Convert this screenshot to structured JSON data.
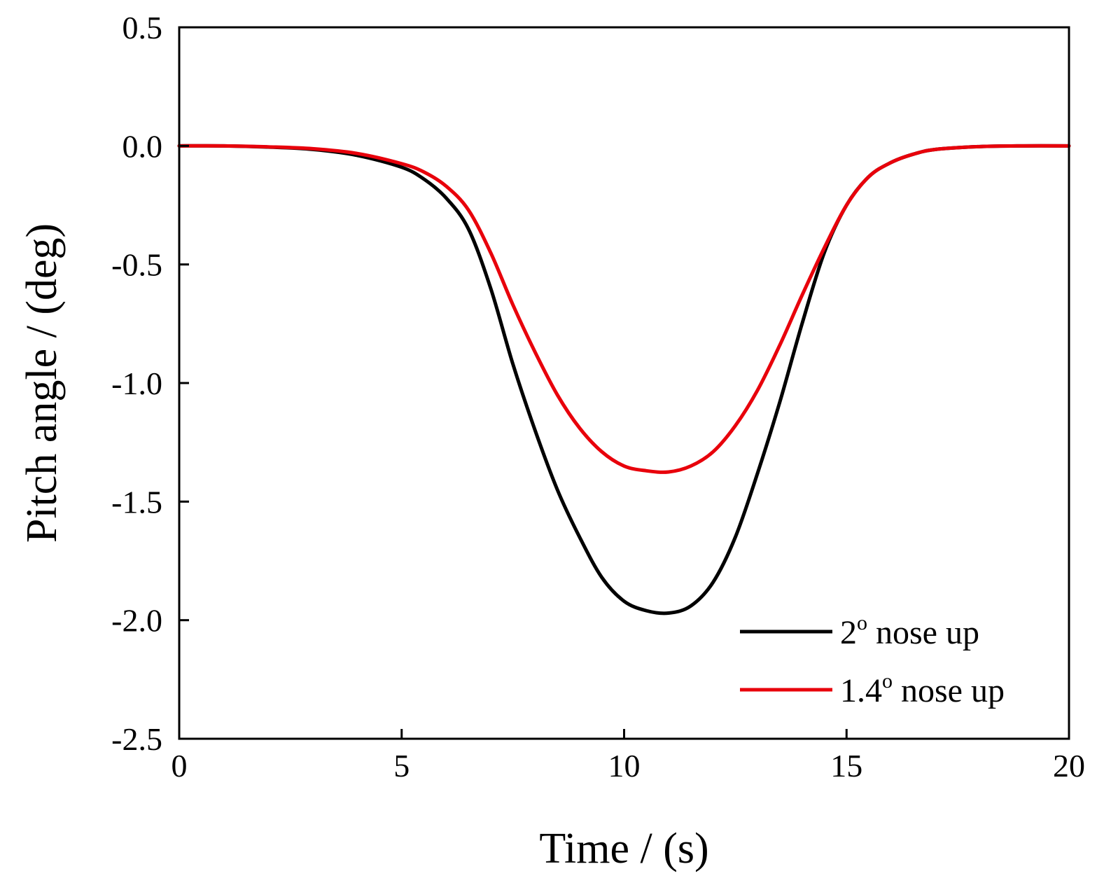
{
  "chart_data": {
    "type": "line",
    "title": "",
    "xlabel": "Time / (s)",
    "ylabel": "Pitch angle / (deg)",
    "xlim": [
      0,
      20
    ],
    "ylim": [
      -2.5,
      0.5
    ],
    "xticks": [
      0,
      5,
      10,
      15,
      20
    ],
    "xtick_labels": [
      "0",
      "5",
      "10",
      "15",
      "20"
    ],
    "yticks": [
      0.5,
      0.0,
      -0.5,
      -1.0,
      -1.5,
      -2.0,
      -2.5
    ],
    "ytick_labels": [
      "0.5",
      "0.0",
      "-0.5",
      "-1.0",
      "-1.5",
      "-2.0",
      "-2.5"
    ],
    "grid": false,
    "legend_position": "bottom-right",
    "series": [
      {
        "name": "2° nose up",
        "legend_main": "2",
        "legend_sup": "o",
        "legend_rest": " nose up",
        "color": "#000000",
        "x": [
          0,
          1,
          2,
          3,
          4,
          5,
          5.5,
          6,
          6.5,
          7,
          7.5,
          8,
          8.5,
          9,
          9.5,
          10,
          10.5,
          11,
          11.5,
          12,
          12.5,
          13,
          13.5,
          14,
          14.5,
          15,
          15.5,
          16,
          16.5,
          17,
          18,
          19,
          20
        ],
        "y": [
          0,
          0,
          -0.005,
          -0.015,
          -0.04,
          -0.09,
          -0.14,
          -0.22,
          -0.35,
          -0.6,
          -0.92,
          -1.2,
          -1.45,
          -1.65,
          -1.82,
          -1.92,
          -1.96,
          -1.97,
          -1.94,
          -1.84,
          -1.65,
          -1.38,
          -1.08,
          -0.75,
          -0.45,
          -0.25,
          -0.13,
          -0.07,
          -0.035,
          -0.015,
          -0.003,
          0,
          0
        ]
      },
      {
        "name": "1.4° nose up",
        "legend_main": "1.4",
        "legend_sup": "o",
        "legend_rest": " nose up",
        "color": "#e8000b",
        "x": [
          0,
          1,
          2,
          3,
          4,
          5,
          5.5,
          6,
          6.5,
          7,
          7.5,
          8,
          8.5,
          9,
          9.5,
          10,
          10.5,
          11,
          11.5,
          12,
          12.5,
          13,
          13.5,
          14,
          14.5,
          15,
          15.5,
          16,
          16.5,
          17,
          18,
          19,
          20
        ],
        "y": [
          0,
          0,
          -0.004,
          -0.012,
          -0.032,
          -0.075,
          -0.11,
          -0.17,
          -0.27,
          -0.45,
          -0.67,
          -0.87,
          -1.05,
          -1.19,
          -1.29,
          -1.35,
          -1.37,
          -1.375,
          -1.35,
          -1.29,
          -1.18,
          -1.03,
          -0.84,
          -0.63,
          -0.43,
          -0.25,
          -0.13,
          -0.07,
          -0.035,
          -0.015,
          -0.003,
          0,
          0
        ]
      }
    ]
  }
}
